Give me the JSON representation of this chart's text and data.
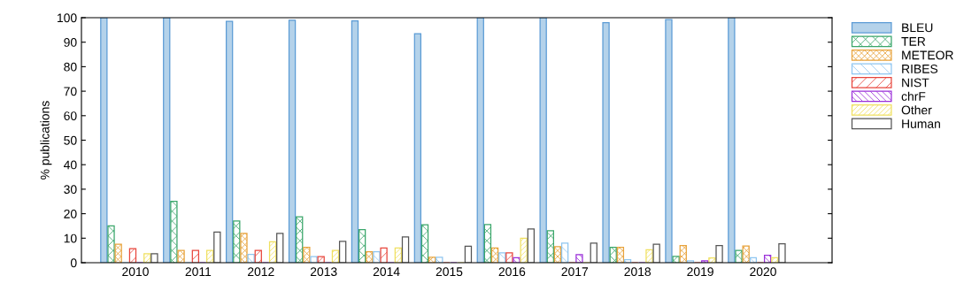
{
  "chart_data": {
    "type": "bar",
    "ylabel": "% publications",
    "categories": [
      "2010",
      "2011",
      "2012",
      "2013",
      "2014",
      "2015",
      "2016",
      "2017",
      "2018",
      "2019",
      "2020"
    ],
    "series": [
      {
        "name": "BLEU",
        "color": "#b4d2ea",
        "values": [
          100,
          100,
          98.5,
          99,
          98.7,
          93.5,
          100,
          100,
          98,
          99.2,
          100
        ]
      },
      {
        "name": "TER",
        "color": "#3aa66a",
        "values": [
          15,
          25,
          17,
          18.7,
          13.5,
          15.5,
          15.6,
          13,
          6.3,
          2.6,
          5
        ]
      },
      {
        "name": "METEOR",
        "color": "#e8a33c",
        "values": [
          7.5,
          5,
          12,
          6.3,
          4.5,
          2.2,
          6,
          6.5,
          6.3,
          7,
          6.8
        ]
      },
      {
        "name": "RIBES",
        "color": "#8ec5f0",
        "values": [
          0,
          0,
          3.4,
          2.5,
          4.5,
          2.2,
          4,
          8,
          1.2,
          0.8,
          2
        ]
      },
      {
        "name": "NIST",
        "color": "#e8463c",
        "values": [
          5.7,
          5,
          5,
          2.5,
          6,
          0,
          4,
          0,
          0,
          0,
          0
        ]
      },
      {
        "name": "chrF",
        "color": "#9b30d9",
        "values": [
          0,
          0,
          0,
          0,
          0,
          0,
          2,
          3.3,
          0,
          0.8,
          3
        ]
      },
      {
        "name": "Other",
        "color": "#f0e060",
        "values": [
          3.7,
          5,
          8.5,
          5,
          6,
          0,
          10,
          0,
          5.3,
          1.9,
          2
        ]
      },
      {
        "name": "Human",
        "color": "#555555",
        "values": [
          3.7,
          12.5,
          12,
          8.7,
          10.5,
          6.7,
          13.8,
          8,
          7.5,
          7,
          7.7
        ]
      }
    ],
    "ylim": [
      0,
      100
    ],
    "yticks": [
      0,
      10,
      20,
      30,
      40,
      50,
      60,
      70,
      80,
      90,
      100
    ],
    "grid": false,
    "legend": "top right"
  }
}
